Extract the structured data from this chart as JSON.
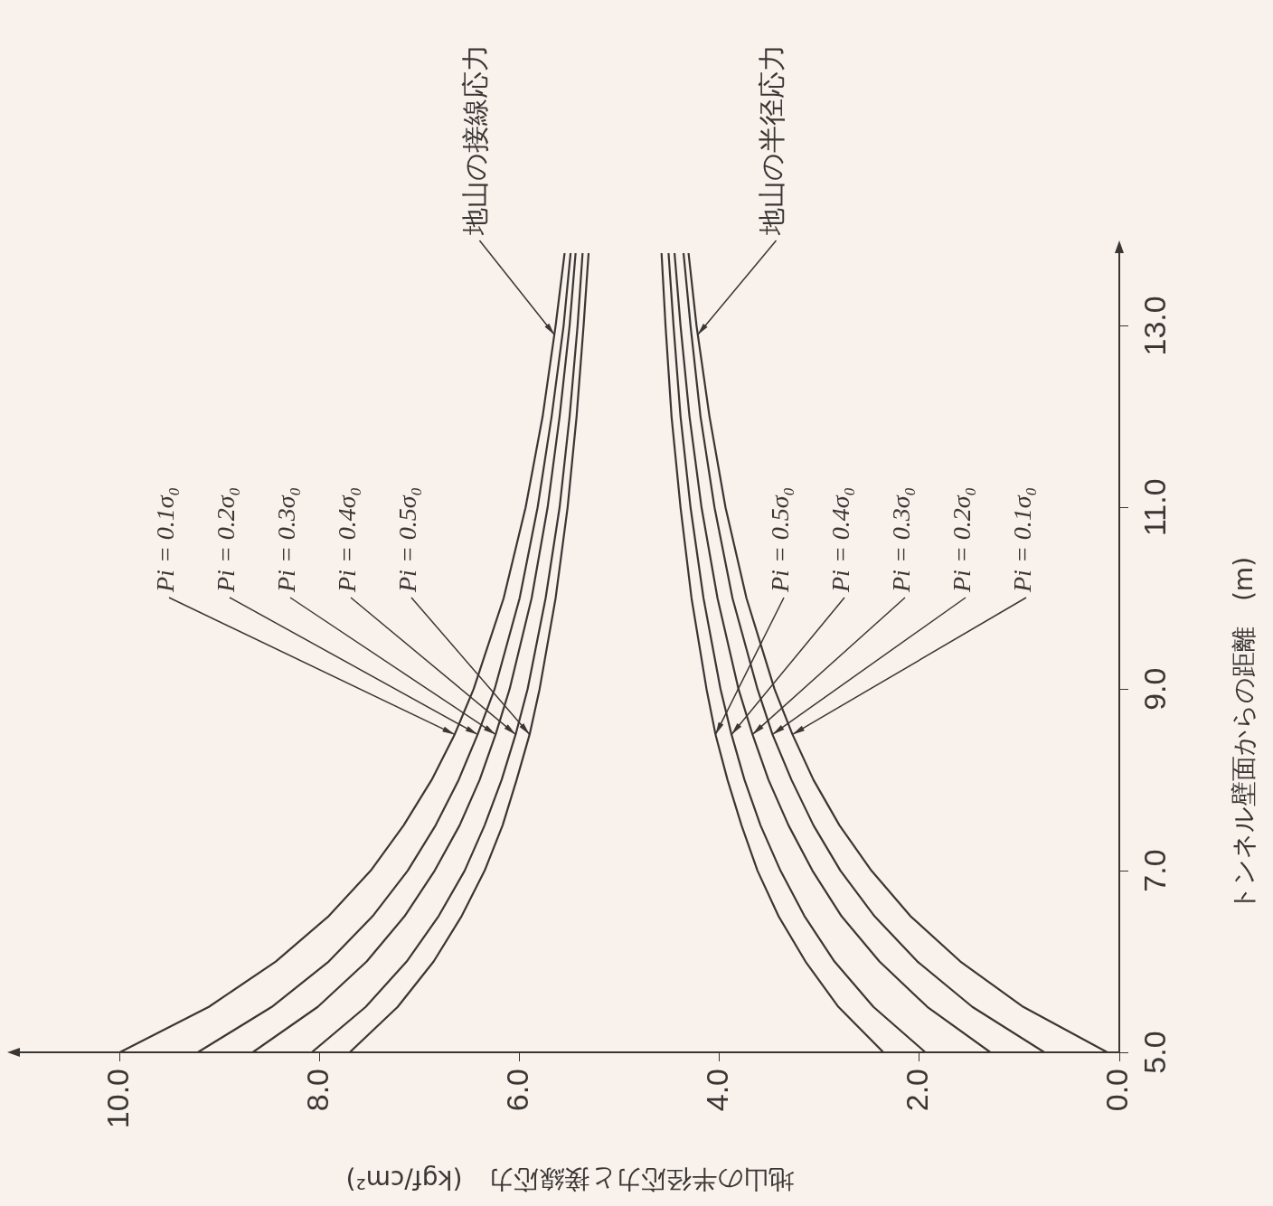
{
  "chart_data": {
    "type": "line",
    "xlabel": "地山の半径応力と接線応力　(kgf/cm²)",
    "ylabel": "トンネル壁面からの距離　(m)",
    "series": [
      {
        "color": "#3a3634",
        "x": [
          10.0,
          9.11,
          8.44,
          7.91,
          7.49,
          7.16,
          6.88,
          6.65,
          6.46,
          6.16,
          5.94,
          5.77,
          5.64,
          5.55
        ],
        "values": [
          5,
          5.5,
          6,
          6.5,
          7,
          7.5,
          8,
          8.5,
          9,
          10,
          11,
          12,
          13,
          13.8
        ]
      },
      {
        "color": "#3a3634",
        "x": [
          9.22,
          8.48,
          7.91,
          7.47,
          7.12,
          6.84,
          6.61,
          6.42,
          6.25,
          6.0,
          5.82,
          5.68,
          5.56,
          5.49
        ],
        "values": [
          5,
          5.5,
          6,
          6.5,
          7,
          7.5,
          8,
          8.5,
          9,
          10,
          11,
          12,
          13,
          13.8
        ]
      },
      {
        "color": "#3a3634",
        "x": [
          8.67,
          8.02,
          7.53,
          7.15,
          6.85,
          6.6,
          6.4,
          6.24,
          6.1,
          5.88,
          5.72,
          5.6,
          5.5,
          5.44
        ],
        "values": [
          5,
          5.5,
          6,
          6.5,
          7,
          7.5,
          8,
          8.5,
          9,
          10,
          11,
          12,
          13,
          13.8
        ]
      },
      {
        "color": "#3a3634",
        "x": [
          8.08,
          7.54,
          7.13,
          6.81,
          6.55,
          6.35,
          6.18,
          6.04,
          5.92,
          5.74,
          5.6,
          5.5,
          5.42,
          5.37
        ],
        "values": [
          5,
          5.5,
          6,
          6.5,
          7,
          7.5,
          8,
          8.5,
          9,
          10,
          11,
          12,
          13,
          13.8
        ]
      },
      {
        "color": "#3a3634",
        "x": [
          7.7,
          7.22,
          6.86,
          6.58,
          6.35,
          6.17,
          6.03,
          5.9,
          5.8,
          5.64,
          5.52,
          5.43,
          5.36,
          5.31
        ],
        "values": [
          5,
          5.5,
          6,
          6.5,
          7,
          7.5,
          8,
          8.5,
          9,
          10,
          11,
          12,
          13,
          13.8
        ]
      },
      {
        "color": "#3a3634",
        "x": [
          0.12,
          0.96,
          1.59,
          2.09,
          2.48,
          2.8,
          3.06,
          3.27,
          3.45,
          3.73,
          3.94,
          4.1,
          4.23,
          4.31
        ],
        "values": [
          5,
          5.5,
          6,
          6.5,
          7,
          7.5,
          8,
          8.5,
          9,
          10,
          11,
          12,
          13,
          13.8
        ]
      },
      {
        "color": "#3a3634",
        "x": [
          0.75,
          1.47,
          2.02,
          2.45,
          2.79,
          3.06,
          3.28,
          3.47,
          3.62,
          3.87,
          4.05,
          4.19,
          4.29,
          4.36
        ],
        "values": [
          5,
          5.5,
          6,
          6.5,
          7,
          7.5,
          8,
          8.5,
          9,
          10,
          11,
          12,
          13,
          13.8
        ]
      },
      {
        "color": "#3a3634",
        "x": [
          1.29,
          1.92,
          2.4,
          2.78,
          3.07,
          3.31,
          3.51,
          3.67,
          3.81,
          4.02,
          4.18,
          4.3,
          4.39,
          4.45
        ],
        "values": [
          5,
          5.5,
          6,
          6.5,
          7,
          7.5,
          8,
          8.5,
          9,
          10,
          11,
          12,
          13,
          13.8
        ]
      },
      {
        "color": "#3a3634",
        "x": [
          1.94,
          2.46,
          2.85,
          3.15,
          3.39,
          3.59,
          3.75,
          3.88,
          3.99,
          4.16,
          4.29,
          4.39,
          4.46,
          4.51
        ],
        "values": [
          5,
          5.5,
          6,
          6.5,
          7,
          7.5,
          8,
          8.5,
          9,
          10,
          11,
          12,
          13,
          13.8
        ]
      },
      {
        "color": "#3a3634",
        "x": [
          2.36,
          2.81,
          3.14,
          3.41,
          3.62,
          3.78,
          3.92,
          4.04,
          4.13,
          4.28,
          4.39,
          4.48,
          4.54,
          4.58
        ],
        "values": [
          5,
          5.5,
          6,
          6.5,
          7,
          7.5,
          8,
          8.5,
          9,
          10,
          11,
          12,
          13,
          13.8
        ]
      }
    ],
    "xlim": [
      11,
      0
    ],
    "xticks": [
      {
        "value": 10,
        "label": "10.0"
      },
      {
        "value": 8,
        "label": "8.0"
      },
      {
        "value": 6,
        "label": "6.0"
      },
      {
        "value": 4,
        "label": "4.0"
      },
      {
        "value": 2,
        "label": "2.0"
      },
      {
        "value": 0,
        "label": "0.0"
      }
    ],
    "ylim": [
      5,
      13.8
    ],
    "yticks": [
      {
        "value": 5,
        "label": "5.0"
      },
      {
        "value": 7,
        "label": "7.0"
      },
      {
        "value": 9,
        "label": "9.0"
      },
      {
        "value": 11,
        "label": "11.0"
      },
      {
        "value": 13,
        "label": "13.0"
      }
    ],
    "marker": "none",
    "line_style": "solid",
    "legend": false,
    "annotations": [
      {
        "text": "Pi = 0.1σ₀",
        "x": 6.65,
        "y": 8.5
      },
      {
        "text": "Pi = 0.2σ₀",
        "x": 6.42,
        "y": 8.5
      },
      {
        "text": "Pi = 0.3σ₀",
        "x": 6.24,
        "y": 8.5
      },
      {
        "text": "Pi = 0.4σ₀",
        "x": 6.04,
        "y": 8.5
      },
      {
        "text": "Pi = 0.5σ₀",
        "x": 5.9,
        "y": 8.5
      },
      {
        "text": "Pi = 0.5σ₀",
        "x": 4.04,
        "y": 8.5
      },
      {
        "text": "Pi = 0.4σ₀",
        "x": 3.88,
        "y": 8.5
      },
      {
        "text": "Pi = 0.3σ₀",
        "x": 3.67,
        "y": 8.5
      },
      {
        "text": "Pi = 0.2σ₀",
        "x": 3.47,
        "y": 8.5
      },
      {
        "text": "Pi = 0.1σ₀",
        "x": 3.27,
        "y": 8.5
      },
      {
        "text": "地山の接線応力",
        "x": 5.65,
        "y": 12.9
      },
      {
        "text": "地山の半径応力",
        "x": 4.22,
        "y": 12.9
      }
    ]
  }
}
